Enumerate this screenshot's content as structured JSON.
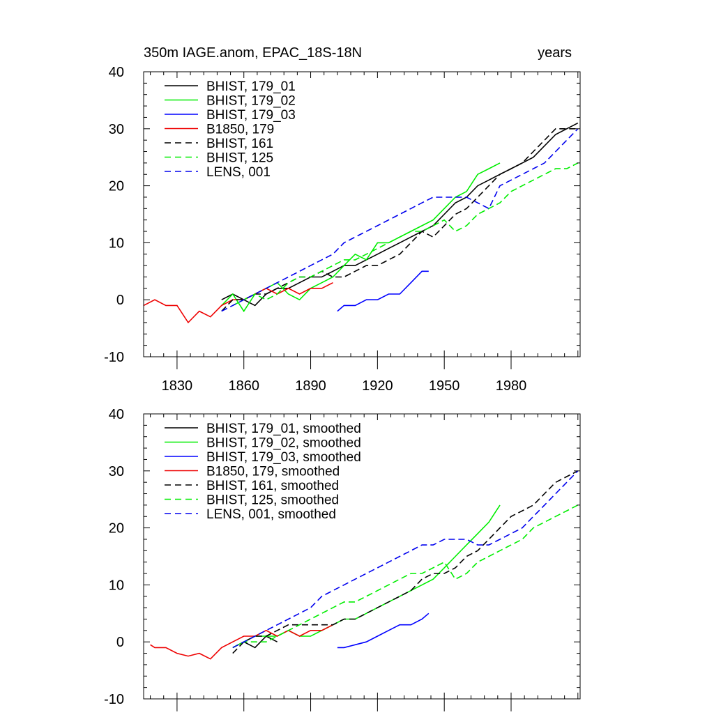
{
  "chart_data": [
    {
      "type": "line",
      "title": "350m IAGE.anom, EPAC_18S-18N",
      "title_right": "years",
      "xlim": [
        1815,
        2011
      ],
      "ylim": [
        -10,
        40
      ],
      "x_ticks": [
        1830,
        1860,
        1890,
        1920,
        1950,
        1980
      ],
      "y_ticks": [
        -10,
        0,
        10,
        20,
        30,
        40
      ],
      "legend_position": "top-left",
      "series": [
        {
          "name": "BHIST, 179_01",
          "color": "#000000",
          "dashed": false,
          "x": [
            1850,
            1855,
            1860,
            1865,
            1870,
            1875,
            1880,
            1885,
            1890,
            1895,
            1900,
            1905,
            1910,
            1915,
            1920,
            1925,
            1930,
            1935,
            1940,
            1945,
            1950,
            1955,
            1960,
            1965,
            1970,
            1975,
            1980,
            1985,
            1990,
            1995,
            2000,
            2005,
            2010
          ],
          "y": [
            0,
            1,
            0,
            -1,
            1,
            2,
            2,
            3,
            4,
            4,
            5,
            6,
            6,
            7,
            8,
            9,
            10,
            11,
            12,
            13,
            15,
            17,
            18,
            20,
            21,
            22,
            23,
            24,
            25,
            27,
            29,
            30,
            31
          ]
        },
        {
          "name": "BHIST, 179_02",
          "color": "#00ee00",
          "dashed": false,
          "x": [
            1850,
            1855,
            1860,
            1865,
            1870,
            1875,
            1880,
            1885,
            1890,
            1895,
            1900,
            1905,
            1910,
            1915,
            1920,
            1925,
            1930,
            1935,
            1940,
            1945,
            1950,
            1955,
            1960,
            1965,
            1970,
            1975
          ],
          "y": [
            -1,
            1,
            -2,
            1,
            2,
            3,
            1,
            0,
            2,
            3,
            4,
            6,
            8,
            7,
            10,
            10,
            11,
            12,
            13,
            14,
            16,
            18,
            19,
            22,
            23,
            24
          ]
        },
        {
          "name": "BHIST, 179_03",
          "color": "#0000ff",
          "dashed": false,
          "x": [
            1902,
            1905,
            1910,
            1915,
            1920,
            1925,
            1930,
            1935,
            1940,
            1943
          ],
          "y": [
            -2,
            -1,
            -1,
            0,
            0,
            1,
            1,
            3,
            5,
            5
          ]
        },
        {
          "name": "B1850, 179",
          "color": "#ee0000",
          "dashed": false,
          "x": [
            1815,
            1820,
            1825,
            1830,
            1835,
            1840,
            1845,
            1850,
            1855,
            1860,
            1865,
            1870,
            1875,
            1880,
            1885,
            1890,
            1895,
            1900
          ],
          "y": [
            -1,
            0,
            -1,
            -1,
            -4,
            -2,
            -3,
            -1,
            0,
            0,
            1,
            2,
            1,
            2,
            1,
            2,
            2,
            3
          ]
        },
        {
          "name": "BHIST, 161",
          "color": "#000000",
          "dashed": true,
          "x": [
            1850,
            1855,
            1860,
            1865,
            1870,
            1875,
            1880,
            1885,
            1890,
            1895,
            1900,
            1905,
            1910,
            1915,
            1920,
            1925,
            1930,
            1935,
            1940,
            1945,
            1950,
            1955,
            1960,
            1965,
            1970,
            1975,
            1980,
            1985,
            1990,
            1995,
            2000,
            2005,
            2010
          ],
          "y": [
            -2,
            0,
            0,
            1,
            1,
            2,
            3,
            4,
            4,
            5,
            4,
            4,
            5,
            6,
            6,
            7,
            8,
            10,
            12,
            11,
            13,
            15,
            16,
            18,
            20,
            22,
            23,
            24,
            26,
            28,
            30,
            30,
            30
          ]
        },
        {
          "name": "BHIST, 125",
          "color": "#00ee00",
          "dashed": true,
          "x": [
            1855,
            1860,
            1865,
            1870,
            1875,
            1880,
            1885,
            1890,
            1895,
            1900,
            1905,
            1910,
            1915,
            1920,
            1925,
            1930,
            1935,
            1940,
            1945,
            1950,
            1955,
            1960,
            1965,
            1970,
            1975,
            1980,
            1985,
            1990,
            1995,
            2000,
            2005,
            2010
          ],
          "y": [
            -1,
            0,
            1,
            0,
            1,
            3,
            4,
            4,
            5,
            6,
            7,
            7,
            8,
            9,
            10,
            11,
            12,
            12,
            13,
            14,
            12,
            13,
            15,
            16,
            17,
            19,
            20,
            21,
            22,
            23,
            23,
            24
          ]
        },
        {
          "name": "LENS, 001",
          "color": "#0000ee",
          "dashed": true,
          "x": [
            1850,
            1855,
            1860,
            1865,
            1870,
            1875,
            1880,
            1885,
            1890,
            1895,
            1900,
            1905,
            1910,
            1915,
            1920,
            1925,
            1930,
            1935,
            1940,
            1945,
            1950,
            1955,
            1960,
            1965,
            1970,
            1975,
            1980,
            1985,
            1990,
            1995,
            2000,
            2005,
            2010
          ],
          "y": [
            -2,
            -1,
            0,
            1,
            2,
            3,
            4,
            5,
            6,
            7,
            8,
            10,
            11,
            12,
            13,
            14,
            15,
            16,
            17,
            18,
            18,
            18,
            18,
            17,
            16,
            20,
            21,
            22,
            23,
            24,
            26,
            28,
            30
          ]
        }
      ]
    },
    {
      "type": "line",
      "xlim": [
        1815,
        2011
      ],
      "ylim": [
        -10,
        40
      ],
      "x_ticks": [
        1830,
        1860,
        1890,
        1920,
        1950,
        1980
      ],
      "y_ticks": [
        -10,
        0,
        10,
        20,
        30,
        40
      ],
      "legend_position": "top-left",
      "series": [
        {
          "name": "BHIST, 179_01, smoothed",
          "color": "#000000",
          "dashed": false,
          "x": [
            1855,
            1860,
            1865,
            1870,
            1875
          ],
          "y": [
            -1,
            0,
            -1,
            1,
            0
          ]
        },
        {
          "name": "BHIST, 179_02, smoothed",
          "color": "#00ee00",
          "dashed": false,
          "x": [
            1855,
            1860,
            1865,
            1870,
            1875,
            1880,
            1885,
            1890,
            1895,
            1900,
            1905,
            1910,
            1915,
            1920,
            1925,
            1930,
            1935,
            1940,
            1945,
            1950,
            1955,
            1960,
            1965,
            1970,
            1975
          ],
          "y": [
            -1,
            0,
            1,
            1,
            1,
            2,
            1,
            1,
            2,
            3,
            4,
            4,
            5,
            6,
            7,
            8,
            9,
            10,
            11,
            13,
            15,
            17,
            19,
            21,
            24
          ]
        },
        {
          "name": "BHIST, 179_03, smoothed",
          "color": "#0000ff",
          "dashed": false,
          "x": [
            1902,
            1905,
            1910,
            1915,
            1920,
            1925,
            1930,
            1935,
            1940,
            1943
          ],
          "y": [
            -1,
            -1,
            -0.5,
            0,
            1,
            2,
            3,
            3,
            4,
            5
          ]
        },
        {
          "name": "B1850, 179, smoothed",
          "color": "#ee0000",
          "dashed": false,
          "x": [
            1818,
            1820,
            1825,
            1830,
            1835,
            1840,
            1845,
            1850,
            1855,
            1860,
            1865,
            1870,
            1875,
            1880,
            1885,
            1890,
            1895,
            1900
          ],
          "y": [
            -0.5,
            -1,
            -1,
            -2,
            -2.5,
            -2,
            -3,
            -1,
            0,
            1,
            1,
            2,
            1,
            2,
            1,
            2,
            2,
            3
          ]
        },
        {
          "name": "BHIST, 161, smoothed",
          "color": "#000000",
          "dashed": true,
          "x": [
            1855,
            1860,
            1865,
            1870,
            1875,
            1880,
            1885,
            1890,
            1895,
            1900,
            1905,
            1910,
            1915,
            1920,
            1925,
            1930,
            1935,
            1940,
            1945,
            1950,
            1955,
            1960,
            1965,
            1970,
            1975,
            1980,
            1985,
            1990,
            1995,
            2000,
            2005,
            2010
          ],
          "y": [
            -2,
            0,
            1,
            1,
            2,
            3,
            3,
            3,
            3,
            3,
            4,
            4,
            5,
            6,
            7,
            8,
            9,
            11,
            12,
            12,
            13,
            15,
            16,
            18,
            20,
            22,
            23,
            24,
            26,
            28,
            29,
            30
          ]
        },
        {
          "name": "BHIST, 125, smoothed",
          "color": "#00ee00",
          "dashed": true,
          "x": [
            1855,
            1860,
            1865,
            1870,
            1875,
            1880,
            1885,
            1890,
            1895,
            1900,
            1905,
            1910,
            1915,
            1920,
            1925,
            1930,
            1935,
            1940,
            1945,
            1950,
            1955,
            1960,
            1965,
            1970,
            1975,
            1980,
            1985,
            1990,
            1995,
            2000,
            2005,
            2010
          ],
          "y": [
            -1,
            0,
            0,
            0,
            1,
            2,
            3,
            4,
            5,
            6,
            7,
            7,
            8,
            9,
            10,
            11,
            12,
            12,
            13,
            14,
            11,
            12,
            14,
            15,
            16,
            17,
            18,
            20,
            21,
            22,
            23,
            24
          ]
        },
        {
          "name": "LENS, 001, smoothed",
          "color": "#0000ee",
          "dashed": true,
          "x": [
            1855,
            1860,
            1865,
            1870,
            1875,
            1880,
            1885,
            1890,
            1895,
            1900,
            1905,
            1910,
            1915,
            1920,
            1925,
            1930,
            1935,
            1940,
            1945,
            1950,
            1955,
            1960,
            1965,
            1970,
            1975,
            1980,
            1985,
            1990,
            1995,
            2000,
            2005,
            2010
          ],
          "y": [
            -1,
            0,
            1,
            2,
            3,
            4,
            5,
            6,
            8,
            9,
            10,
            11,
            12,
            13,
            14,
            15,
            16,
            17,
            17,
            18,
            18,
            18,
            17,
            17,
            18,
            19,
            20,
            22,
            24,
            26,
            28,
            30
          ]
        }
      ]
    }
  ]
}
